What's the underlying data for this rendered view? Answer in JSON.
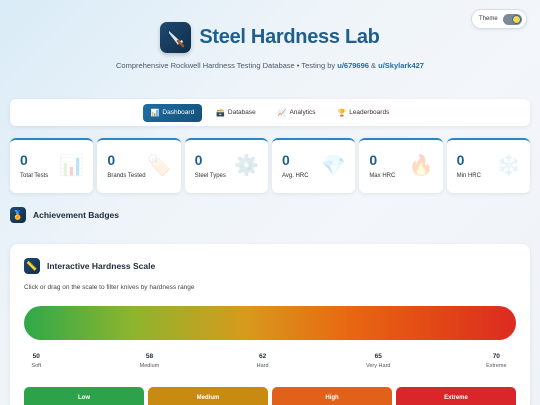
{
  "theme": {
    "label": "Theme"
  },
  "header": {
    "title": "Steel Hardness Lab",
    "subtitle_text": "Comprehensive Rockwell Hardness Testing Database • Testing by ",
    "author1": "u/679696",
    "and_text": " & ",
    "author2": "u/Skylark427"
  },
  "nav": {
    "tabs": [
      {
        "label": "Dashboard",
        "icon": "📊"
      },
      {
        "label": "Database",
        "icon": "🗃️"
      },
      {
        "label": "Analytics",
        "icon": "📈"
      },
      {
        "label": "Leaderboards",
        "icon": "🏆"
      }
    ]
  },
  "stats": [
    {
      "value": "0",
      "label": "Total Tests",
      "icon": "📊"
    },
    {
      "value": "0",
      "label": "Brands Tested",
      "icon": "🏷️"
    },
    {
      "value": "0",
      "label": "Steel Types",
      "icon": "⚙️"
    },
    {
      "value": "0",
      "label": "Avg. HRC",
      "icon": "💎"
    },
    {
      "value": "0",
      "label": "Max HRC",
      "icon": "🔥"
    },
    {
      "value": "0",
      "label": "Min HRC",
      "icon": "❄️"
    }
  ],
  "achievements": {
    "title": "Achievement Badges",
    "icon": "🏅"
  },
  "scale": {
    "title": "Interactive Hardness Scale",
    "icon": "📏",
    "description": "Click or drag on the scale to filter knives by hardness range",
    "ticks": [
      {
        "value": "50",
        "name": "Soft"
      },
      {
        "value": "58",
        "name": "Medium"
      },
      {
        "value": "62",
        "name": "Hard"
      },
      {
        "value": "65",
        "name": "Very Hard"
      },
      {
        "value": "70",
        "name": "Extreme"
      }
    ],
    "ranges": [
      {
        "label": "Low",
        "color": "#2ea24a"
      },
      {
        "label": "Medium",
        "color": "#c98a12"
      },
      {
        "label": "High",
        "color": "#e2611a"
      },
      {
        "label": "Extreme",
        "color": "#d8262a"
      }
    ]
  }
}
